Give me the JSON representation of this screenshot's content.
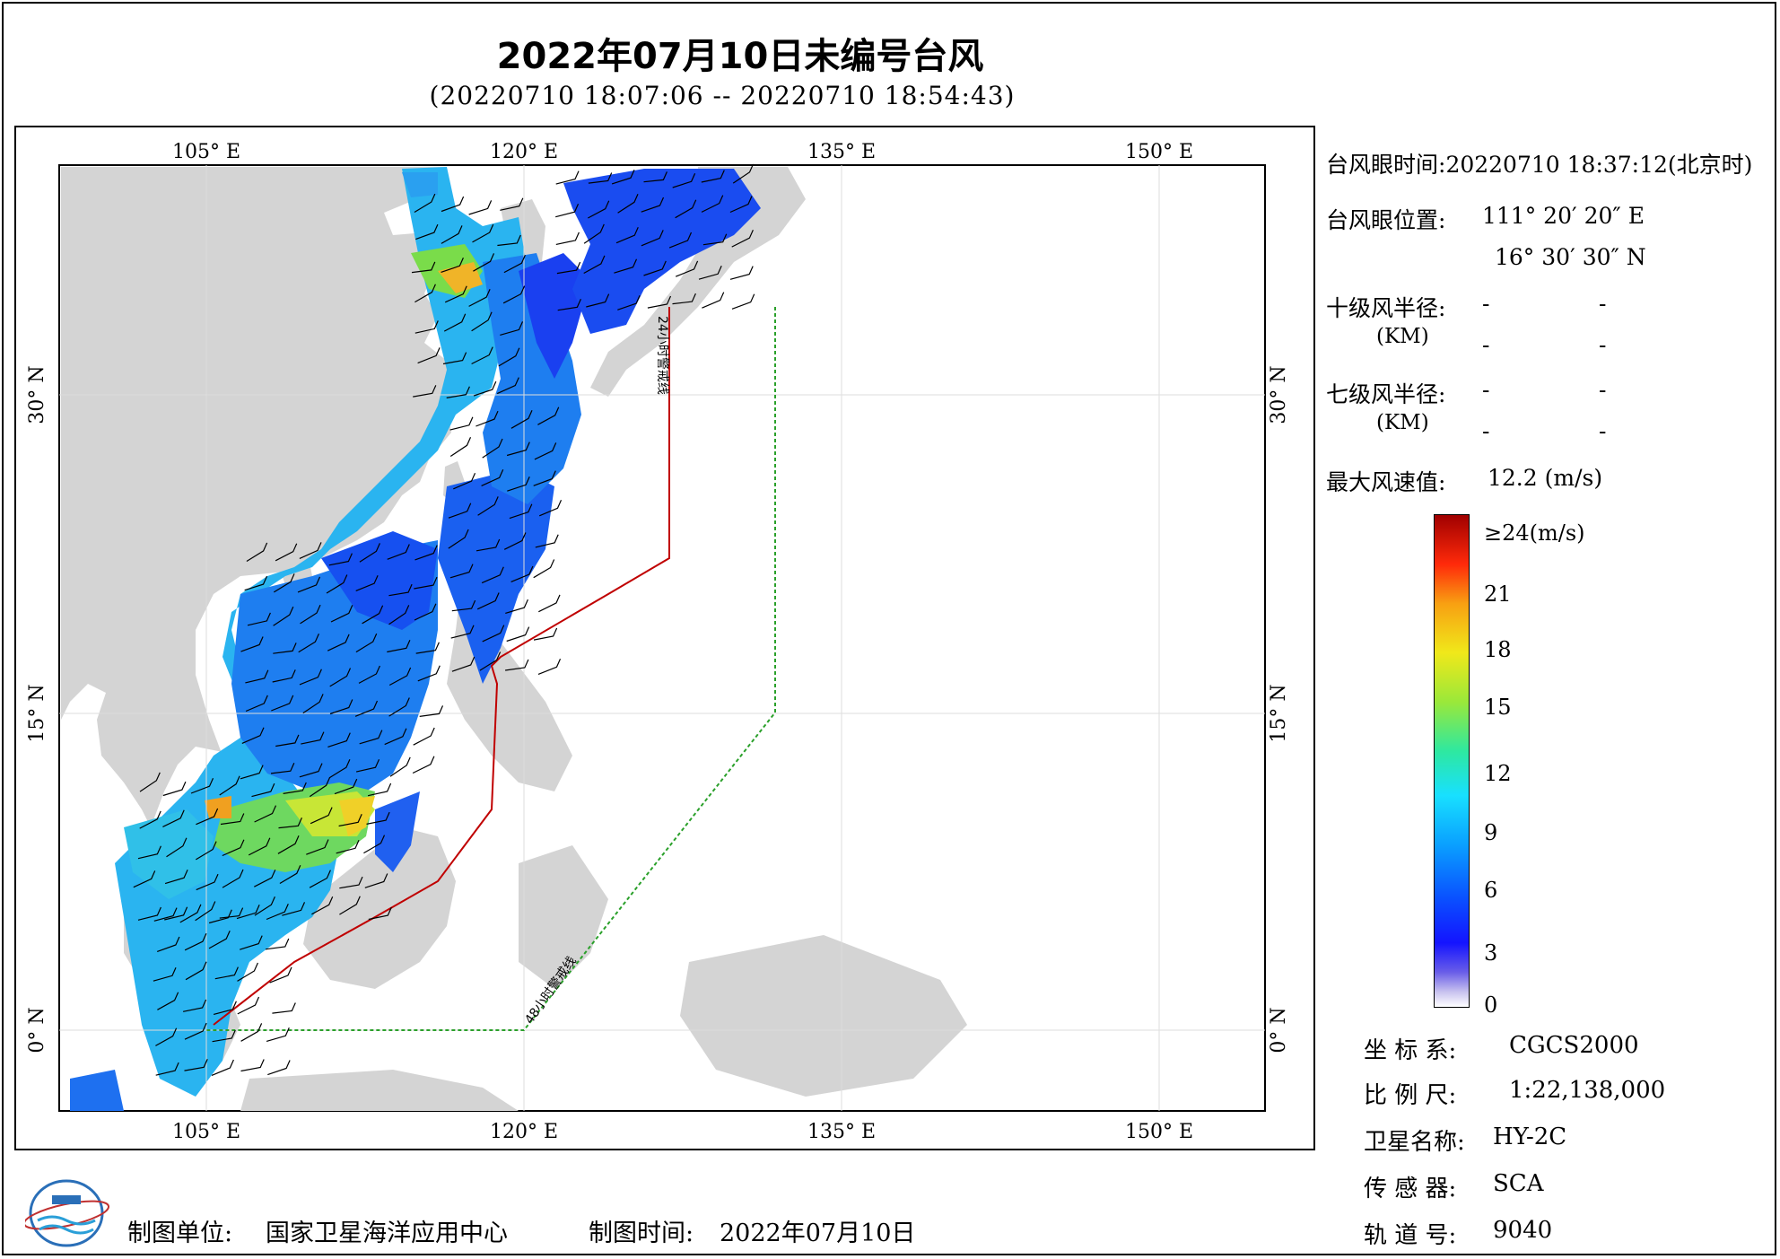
{
  "header": {
    "title": "2022年07月10日未编号台风",
    "subtitle": "(20220710 18:07:06 -- 20220710 18:54:43)"
  },
  "map": {
    "lon_ticks": [
      "105° E",
      "120° E",
      "135° E",
      "150° E"
    ],
    "lat_ticks": [
      "30° N",
      "15° N",
      "0° N"
    ],
    "warning_24h_label": "24小时警戒线",
    "warning_48h_label": "48小时警戒线",
    "colors": {
      "land": "#d4d4d4",
      "ocean": "#ffffff",
      "line_24h": "#c00000",
      "line_48h": "#2aa02a"
    }
  },
  "panel": {
    "eye_time_label": "台风眼时间:",
    "eye_time_value": "20220710 18:37:12(北京时)",
    "eye_pos_label": "台风眼位置:",
    "eye_lon": "111° 20′ 20″ E",
    "eye_lat": "16° 30′ 30″ N",
    "r10_label": "十级风半径:",
    "r10_unit": "(KM)",
    "r7_label": "七级风半径:",
    "r7_unit": "(KM)",
    "dash": "-",
    "max_wind_label": "最大风速值:",
    "max_wind_value": "12.2 (m/s)"
  },
  "colorbar": {
    "top_label": "≥24(m/s)",
    "ticks": [
      "21",
      "18",
      "15",
      "12",
      "9",
      "6",
      "3",
      "0"
    ]
  },
  "info": {
    "crs_label": "坐 标 系:",
    "crs_value": "CGCS2000",
    "scale_label": "比 例 尺:",
    "scale_value": "1:22,138,000",
    "sat_label": "卫星名称:",
    "sat_value": "HY-2C",
    "sensor_label": "传 感 器:",
    "sensor_value": "SCA",
    "orbit_label": "轨 道 号:",
    "orbit_value": "9040"
  },
  "footer": {
    "unit_label": "制图单位:",
    "unit_value": "国家卫星海洋应用中心",
    "date_label": "制图时间:",
    "date_value": "2022年07月10日"
  }
}
